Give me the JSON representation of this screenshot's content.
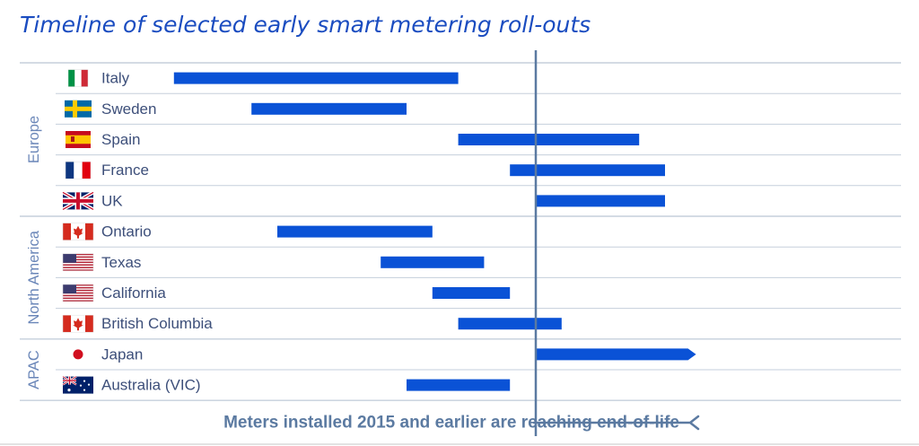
{
  "chart_data": {
    "type": "gantt",
    "title": "Timeline of selected early smart metering roll-outs",
    "x_unit": "year",
    "xlim": [
      2000,
      2030
    ],
    "groups": [
      {
        "name": "Europe",
        "rows": [
          0,
          4
        ]
      },
      {
        "name": "North America",
        "rows": [
          5,
          8
        ]
      },
      {
        "name": "APAC",
        "rows": [
          9,
          10
        ]
      }
    ],
    "rows": [
      {
        "label": "Italy",
        "group": "Europe",
        "flag": "italy-flag-icon",
        "start": 2001,
        "end": 2012
      },
      {
        "label": "Sweden",
        "group": "Europe",
        "flag": "sweden-flag-icon",
        "start": 2004,
        "end": 2010
      },
      {
        "label": "Spain",
        "group": "Europe",
        "flag": "spain-flag-icon",
        "start": 2012,
        "end": 2019
      },
      {
        "label": "France",
        "group": "Europe",
        "flag": "france-flag-icon",
        "start": 2014,
        "end": 2020
      },
      {
        "label": "UK",
        "group": "Europe",
        "flag": "uk-flag-icon",
        "start": 2015,
        "end": 2020
      },
      {
        "label": "Ontario",
        "group": "North America",
        "flag": "canada-flag-icon",
        "start": 2005,
        "end": 2011
      },
      {
        "label": "Texas",
        "group": "North America",
        "flag": "usa-flag-icon",
        "start": 2009,
        "end": 2013
      },
      {
        "label": "California",
        "group": "North America",
        "flag": "usa-flag-icon",
        "start": 2011,
        "end": 2014
      },
      {
        "label": "British Columbia",
        "group": "North America",
        "flag": "canada-flag-icon",
        "start": 2012,
        "end": 2016
      },
      {
        "label": "Japan",
        "group": "APAC",
        "flag": "japan-flag-icon",
        "start": 2015,
        "end": 2021.2,
        "arrow": true
      },
      {
        "label": "Australia (VIC)",
        "group": "APAC",
        "flag": "australia-flag-icon",
        "start": 2010,
        "end": 2014
      }
    ],
    "reference_line": {
      "x": 2015,
      "annotation": "Meters installed 2015 and earlier are reaching end-of-life"
    },
    "colors": {
      "bar": "#0a52d6",
      "line": "#5b7aa1",
      "label": "#3d4f7a",
      "group_label": "#6a86b8",
      "title": "#1a4cc0",
      "annotation": "#5b7aa1",
      "divider": "#c5cfdc"
    }
  }
}
